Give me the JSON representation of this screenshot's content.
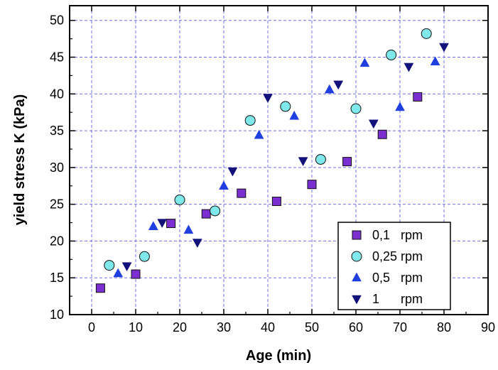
{
  "chart_data": {
    "type": "scatter",
    "xlabel": "Age (min)",
    "ylabel": "yield stress K (kPa)",
    "xlim": [
      -5,
      90
    ],
    "ylim": [
      10,
      52
    ],
    "xticks": [
      0,
      10,
      20,
      30,
      40,
      50,
      60,
      70,
      80,
      90
    ],
    "yticks": [
      10,
      15,
      20,
      25,
      30,
      35,
      40,
      45,
      50
    ],
    "grid": true,
    "legend_position": "bottom-right",
    "series": [
      {
        "name": "0,1   rpm",
        "marker": "square",
        "color": "#7b2fd1",
        "points": [
          [
            2,
            13.6
          ],
          [
            10,
            15.5
          ],
          [
            18,
            22.4
          ],
          [
            26,
            23.7
          ],
          [
            34,
            26.5
          ],
          [
            42,
            25.4
          ],
          [
            50,
            27.7
          ],
          [
            58,
            30.8
          ],
          [
            66,
            34.5
          ],
          [
            74,
            39.6
          ]
        ]
      },
      {
        "name": "0,25 rpm",
        "marker": "circle",
        "color": "#7fe8ea",
        "points": [
          [
            4,
            16.7
          ],
          [
            12,
            17.9
          ],
          [
            20,
            25.6
          ],
          [
            28,
            24.1
          ],
          [
            36,
            36.4
          ],
          [
            44,
            38.3
          ],
          [
            52,
            31.1
          ],
          [
            60,
            38.0
          ],
          [
            68,
            45.3
          ],
          [
            76,
            48.2
          ]
        ]
      },
      {
        "name": "0,5   rpm",
        "marker": "triangle-up",
        "color": "#1f3fe0",
        "points": [
          [
            6,
            15.6
          ],
          [
            14,
            22.0
          ],
          [
            22,
            21.5
          ],
          [
            30,
            27.5
          ],
          [
            38,
            34.4
          ],
          [
            46,
            37.0
          ],
          [
            54,
            40.6
          ],
          [
            62,
            44.2
          ],
          [
            70,
            38.2
          ],
          [
            78,
            44.4
          ]
        ]
      },
      {
        "name": "1      rpm",
        "marker": "triangle-down",
        "color": "#12127a",
        "points": [
          [
            8,
            16.6
          ],
          [
            16,
            22.5
          ],
          [
            24,
            19.8
          ],
          [
            32,
            29.5
          ],
          [
            40,
            39.5
          ],
          [
            48,
            30.9
          ],
          [
            56,
            41.3
          ],
          [
            64,
            36.0
          ],
          [
            72,
            43.7
          ],
          [
            80,
            46.4
          ]
        ]
      }
    ]
  }
}
